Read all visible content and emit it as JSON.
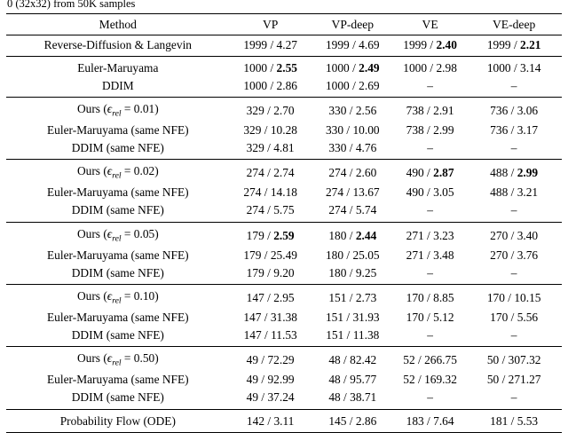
{
  "caption": "0 (32x32) from 50K samples",
  "table": {
    "dash": "–",
    "columns": [
      "Method",
      "VP",
      "VP-deep",
      "VE",
      "VE-deep"
    ],
    "groups": [
      {
        "rows": [
          {
            "method": [
              {
                "t": "Reverse-Diffusion & Langevin"
              }
            ],
            "cells": [
              {
                "nfe": "1999",
                "fid": "4.27",
                "bold": false
              },
              {
                "nfe": "1999",
                "fid": "4.69",
                "bold": false
              },
              {
                "nfe": "1999",
                "fid": "2.40",
                "bold": true
              },
              {
                "nfe": "1999",
                "fid": "2.21",
                "bold": true
              }
            ]
          }
        ]
      },
      {
        "rows": [
          {
            "method": [
              {
                "t": "Euler-Maruyama"
              }
            ],
            "cells": [
              {
                "nfe": "1000",
                "fid": "2.55",
                "bold": true
              },
              {
                "nfe": "1000",
                "fid": "2.49",
                "bold": true
              },
              {
                "nfe": "1000",
                "fid": "2.98",
                "bold": false
              },
              {
                "nfe": "1000",
                "fid": "3.14",
                "bold": false
              }
            ]
          },
          {
            "method": [
              {
                "t": "DDIM"
              }
            ],
            "cells": [
              {
                "nfe": "1000",
                "fid": "2.86",
                "bold": false
              },
              {
                "nfe": "1000",
                "fid": "2.69",
                "bold": false
              },
              null,
              null
            ]
          }
        ]
      },
      {
        "rows": [
          {
            "method": [
              {
                "t": "Ours ("
              },
              {
                "t": "ϵ",
                "style": "mathit"
              },
              {
                "t": "rel",
                "style": "sub"
              },
              {
                "t": " = 0.01)"
              }
            ],
            "cells": [
              {
                "nfe": "329",
                "fid": "2.70",
                "bold": false
              },
              {
                "nfe": "330",
                "fid": "2.56",
                "bold": false
              },
              {
                "nfe": "738",
                "fid": "2.91",
                "bold": false
              },
              {
                "nfe": "736",
                "fid": "3.06",
                "bold": false
              }
            ]
          },
          {
            "method": [
              {
                "t": "Euler-Maruyama (same NFE)"
              }
            ],
            "cells": [
              {
                "nfe": "329",
                "fid": "10.28",
                "bold": false
              },
              {
                "nfe": "330",
                "fid": "10.00",
                "bold": false
              },
              {
                "nfe": "738",
                "fid": "2.99",
                "bold": false
              },
              {
                "nfe": "736",
                "fid": "3.17",
                "bold": false
              }
            ]
          },
          {
            "method": [
              {
                "t": "DDIM (same NFE)"
              }
            ],
            "cells": [
              {
                "nfe": "329",
                "fid": "4.81",
                "bold": false
              },
              {
                "nfe": "330",
                "fid": "4.76",
                "bold": false
              },
              null,
              null
            ]
          }
        ]
      },
      {
        "rows": [
          {
            "method": [
              {
                "t": "Ours ("
              },
              {
                "t": "ϵ",
                "style": "mathit"
              },
              {
                "t": "rel",
                "style": "sub"
              },
              {
                "t": " = 0.02)"
              }
            ],
            "cells": [
              {
                "nfe": "274",
                "fid": "2.74",
                "bold": false
              },
              {
                "nfe": "274",
                "fid": "2.60",
                "bold": false
              },
              {
                "nfe": "490",
                "fid": "2.87",
                "bold": true
              },
              {
                "nfe": "488",
                "fid": "2.99",
                "bold": true
              }
            ]
          },
          {
            "method": [
              {
                "t": "Euler-Maruyama (same NFE)"
              }
            ],
            "cells": [
              {
                "nfe": "274",
                "fid": "14.18",
                "bold": false
              },
              {
                "nfe": "274",
                "fid": "13.67",
                "bold": false
              },
              {
                "nfe": "490",
                "fid": "3.05",
                "bold": false
              },
              {
                "nfe": "488",
                "fid": "3.21",
                "bold": false
              }
            ]
          },
          {
            "method": [
              {
                "t": "DDIM (same NFE)"
              }
            ],
            "cells": [
              {
                "nfe": "274",
                "fid": "5.75",
                "bold": false
              },
              {
                "nfe": "274",
                "fid": "5.74",
                "bold": false
              },
              null,
              null
            ]
          }
        ]
      },
      {
        "rows": [
          {
            "method": [
              {
                "t": "Ours ("
              },
              {
                "t": "ϵ",
                "style": "mathit"
              },
              {
                "t": "rel",
                "style": "sub"
              },
              {
                "t": " = 0.05)"
              }
            ],
            "cells": [
              {
                "nfe": "179",
                "fid": "2.59",
                "bold": true
              },
              {
                "nfe": "180",
                "fid": "2.44",
                "bold": true
              },
              {
                "nfe": "271",
                "fid": "3.23",
                "bold": false
              },
              {
                "nfe": "270",
                "fid": "3.40",
                "bold": false
              }
            ]
          },
          {
            "method": [
              {
                "t": "Euler-Maruyama (same NFE)"
              }
            ],
            "cells": [
              {
                "nfe": "179",
                "fid": "25.49",
                "bold": false
              },
              {
                "nfe": "180",
                "fid": "25.05",
                "bold": false
              },
              {
                "nfe": "271",
                "fid": "3.48",
                "bold": false
              },
              {
                "nfe": "270",
                "fid": "3.76",
                "bold": false
              }
            ]
          },
          {
            "method": [
              {
                "t": "DDIM (same NFE)"
              }
            ],
            "cells": [
              {
                "nfe": "179",
                "fid": "9.20",
                "bold": false
              },
              {
                "nfe": "180",
                "fid": "9.25",
                "bold": false
              },
              null,
              null
            ]
          }
        ]
      },
      {
        "rows": [
          {
            "method": [
              {
                "t": "Ours ("
              },
              {
                "t": "ϵ",
                "style": "mathit"
              },
              {
                "t": "rel",
                "style": "sub"
              },
              {
                "t": " = 0.10)"
              }
            ],
            "cells": [
              {
                "nfe": "147",
                "fid": "2.95",
                "bold": false
              },
              {
                "nfe": "151",
                "fid": "2.73",
                "bold": false
              },
              {
                "nfe": "170",
                "fid": "8.85",
                "bold": false
              },
              {
                "nfe": "170",
                "fid": "10.15",
                "bold": false
              }
            ]
          },
          {
            "method": [
              {
                "t": "Euler-Maruyama (same NFE)"
              }
            ],
            "cells": [
              {
                "nfe": "147",
                "fid": "31.38",
                "bold": false
              },
              {
                "nfe": "151",
                "fid": "31.93",
                "bold": false
              },
              {
                "nfe": "170",
                "fid": "5.12",
                "bold": false
              },
              {
                "nfe": "170",
                "fid": "5.56",
                "bold": false
              }
            ]
          },
          {
            "method": [
              {
                "t": "DDIM (same NFE)"
              }
            ],
            "cells": [
              {
                "nfe": "147",
                "fid": "11.53",
                "bold": false
              },
              {
                "nfe": "151",
                "fid": "11.38",
                "bold": false
              },
              null,
              null
            ]
          }
        ]
      },
      {
        "rows": [
          {
            "method": [
              {
                "t": "Ours ("
              },
              {
                "t": "ϵ",
                "style": "mathit"
              },
              {
                "t": "rel",
                "style": "sub"
              },
              {
                "t": " = 0.50)"
              }
            ],
            "cells": [
              {
                "nfe": "49",
                "fid": "72.29",
                "bold": false
              },
              {
                "nfe": "48",
                "fid": "82.42",
                "bold": false
              },
              {
                "nfe": "52",
                "fid": "266.75",
                "bold": false
              },
              {
                "nfe": "50",
                "fid": "307.32",
                "bold": false
              }
            ]
          },
          {
            "method": [
              {
                "t": "Euler-Maruyama (same NFE)"
              }
            ],
            "cells": [
              {
                "nfe": "49",
                "fid": "92.99",
                "bold": false
              },
              {
                "nfe": "48",
                "fid": "95.77",
                "bold": false
              },
              {
                "nfe": "52",
                "fid": "169.32",
                "bold": false
              },
              {
                "nfe": "50",
                "fid": "271.27",
                "bold": false
              }
            ]
          },
          {
            "method": [
              {
                "t": "DDIM (same NFE)"
              }
            ],
            "cells": [
              {
                "nfe": "49",
                "fid": "37.24",
                "bold": false
              },
              {
                "nfe": "48",
                "fid": "38.71",
                "bold": false
              },
              null,
              null
            ]
          }
        ]
      },
      {
        "rows": [
          {
            "method": [
              {
                "t": "Probability Flow (ODE)"
              }
            ],
            "cells": [
              {
                "nfe": "142",
                "fid": "3.11",
                "bold": false
              },
              {
                "nfe": "145",
                "fid": "2.86",
                "bold": false
              },
              {
                "nfe": "183",
                "fid": "7.64",
                "bold": false
              },
              {
                "nfe": "181",
                "fid": "5.53",
                "bold": false
              }
            ]
          }
        ]
      }
    ]
  }
}
